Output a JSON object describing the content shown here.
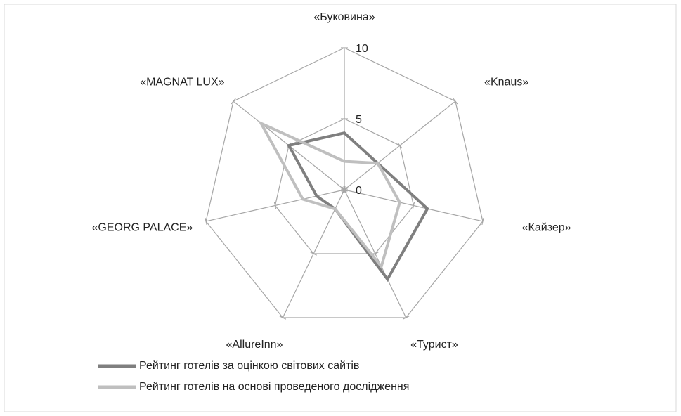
{
  "chart_data": {
    "type": "radar",
    "categories": [
      "«Буковина»",
      "«Knaus»",
      "«Кайзер»",
      "«Турист»",
      "«AllureInn»",
      "«GEORG PALACE»",
      "«MAGNAT LUX»"
    ],
    "series": [
      {
        "name": "Рейтинг готелів за оцінкою світових сайтів",
        "color": "#7f7f7f",
        "values": [
          4,
          3,
          6,
          7,
          1.5,
          2,
          5
        ]
      },
      {
        "name": "Рейтинг готелів на основі проведеного дослідження",
        "color": "#bfbfbf",
        "values": [
          2,
          3,
          4,
          6,
          1.5,
          3,
          7.5
        ]
      }
    ],
    "ylim": [
      0,
      10
    ],
    "yticks": [
      0,
      5,
      10
    ],
    "grid": true,
    "legend": "bottom"
  }
}
